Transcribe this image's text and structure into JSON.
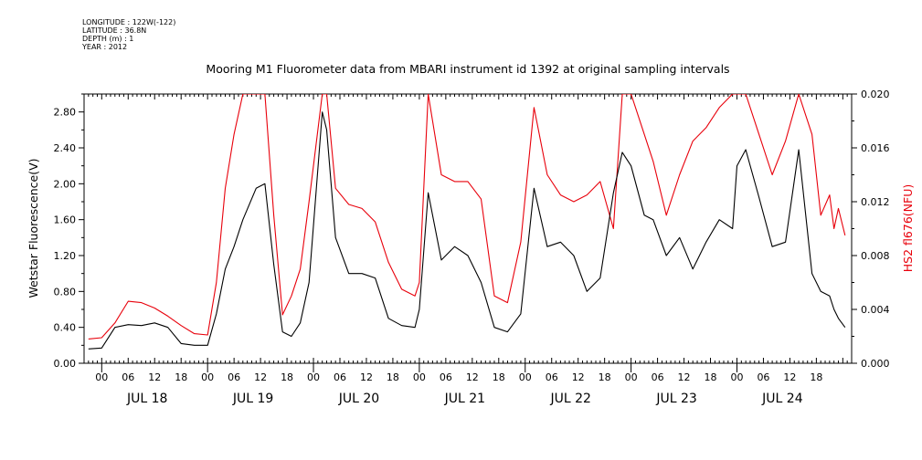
{
  "meta": {
    "longitude": "LONGITUDE : 122W(-122)",
    "latitude": "LATITUDE : 36.8N",
    "depth": "DEPTH (m) : 1",
    "year": "YEAR : 2012"
  },
  "colors": {
    "primary": "#000000",
    "secondary": "#e8000b"
  },
  "chart_data": {
    "type": "line",
    "title": "Mooring M1 Fluorometer data from MBARI instrument id 1392 at original sampling intervals",
    "ylabel": "Wetstar Fluorescence(V)",
    "y2label": "HS2 fl676(NFU)",
    "ylim": [
      0,
      3.0
    ],
    "y2lim": [
      0,
      0.02
    ],
    "xlim_hours": [
      -4,
      170
    ],
    "yticks": [
      "0.00",
      "0.40",
      "0.80",
      "1.20",
      "1.60",
      "2.00",
      "2.40",
      "2.80"
    ],
    "y2ticks": [
      "0.000",
      "0.004",
      "0.008",
      "0.012",
      "0.016",
      "0.020"
    ],
    "hour_ticks": [
      "00",
      "06",
      "12",
      "18"
    ],
    "days": [
      "JUL 18",
      "JUL 19",
      "JUL 20",
      "JUL 21",
      "JUL 22",
      "JUL 23",
      "JUL 24"
    ],
    "grid": false,
    "x": [
      -3,
      0,
      3,
      6,
      9,
      12,
      15,
      18,
      21,
      24,
      26,
      28,
      30,
      32,
      35,
      37,
      39,
      41,
      43,
      45,
      47,
      50,
      51,
      53,
      56,
      59,
      62,
      65,
      68,
      71,
      72,
      74,
      77,
      80,
      83,
      86,
      89,
      92,
      95,
      98,
      101,
      104,
      107,
      110,
      113,
      116,
      118,
      120,
      123,
      125,
      128,
      131,
      134,
      137,
      140,
      143,
      144,
      146,
      149,
      152,
      155,
      158,
      161,
      163,
      165,
      166,
      167,
      168.5
    ],
    "series": [
      {
        "name": "Wetstar Fluorescence(V)",
        "axis": "left",
        "color": "#000000",
        "values": [
          0.16,
          0.17,
          0.4,
          0.43,
          0.42,
          0.45,
          0.4,
          0.22,
          0.2,
          0.2,
          0.55,
          1.05,
          1.3,
          1.6,
          1.95,
          2.0,
          1.1,
          0.35,
          0.3,
          0.45,
          0.9,
          2.8,
          2.6,
          1.4,
          1.0,
          1.0,
          0.95,
          0.5,
          0.42,
          0.4,
          0.6,
          1.9,
          1.15,
          1.3,
          1.2,
          0.9,
          0.4,
          0.35,
          0.55,
          1.95,
          1.3,
          1.35,
          1.2,
          0.8,
          0.95,
          1.9,
          2.35,
          2.2,
          1.65,
          1.6,
          1.2,
          1.4,
          1.05,
          1.35,
          1.6,
          1.5,
          2.2,
          2.38,
          1.85,
          1.3,
          1.35,
          2.38,
          1.0,
          0.8,
          0.75,
          0.6,
          0.5,
          0.4
        ]
      },
      {
        "name": "HS2 fl676(NFU)",
        "axis": "right",
        "color": "#e8000b",
        "values": [
          0.0018,
          0.0019,
          0.003,
          0.0046,
          0.0045,
          0.0041,
          0.0035,
          0.0028,
          0.0022,
          0.0021,
          0.006,
          0.013,
          0.017,
          0.02,
          0.02,
          0.02,
          0.011,
          0.0036,
          0.005,
          0.007,
          0.012,
          0.02,
          0.02,
          0.013,
          0.0118,
          0.0115,
          0.0105,
          0.0075,
          0.0055,
          0.005,
          0.006,
          0.02,
          0.014,
          0.0135,
          0.0135,
          0.0122,
          0.005,
          0.0045,
          0.009,
          0.019,
          0.014,
          0.0125,
          0.012,
          0.0125,
          0.0135,
          0.01,
          0.02,
          0.02,
          0.017,
          0.015,
          0.011,
          0.014,
          0.0165,
          0.0175,
          0.019,
          0.02,
          0.02,
          0.02,
          0.017,
          0.014,
          0.0165,
          0.02,
          0.017,
          0.011,
          0.0125,
          0.01,
          0.0115,
          0.0095
        ]
      }
    ]
  }
}
